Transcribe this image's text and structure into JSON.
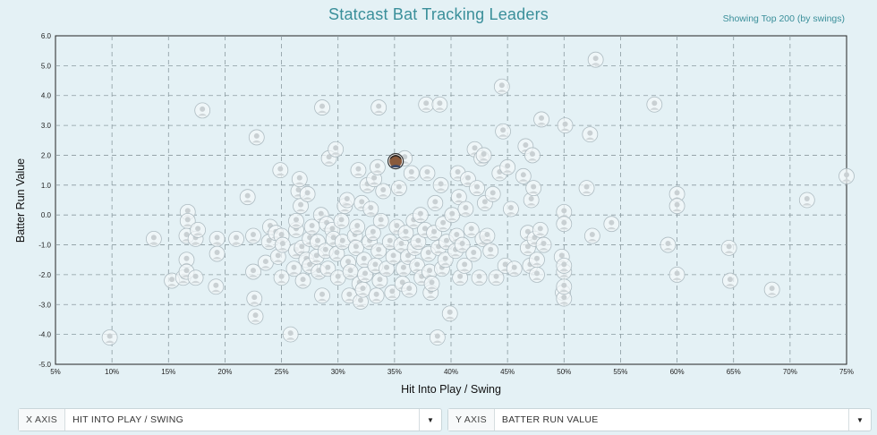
{
  "header": {
    "title": "Statcast Bat Tracking Leaders",
    "subtitle": "Showing Top 200 (by swings)"
  },
  "controls": {
    "x_axis": {
      "label": "X AXIS",
      "value": "HIT INTO PLAY / SWING"
    },
    "y_axis": {
      "label": "Y AXIS",
      "value": "BATTER RUN VALUE"
    }
  },
  "chart_data": {
    "type": "scatter",
    "xlabel": "Hit Into Play / Swing",
    "ylabel": "Batter Run Value",
    "xlim": [
      5,
      75
    ],
    "ylim": [
      -5,
      6
    ],
    "x_ticks": [
      "5%",
      "10%",
      "15%",
      "20%",
      "25%",
      "30%",
      "35%",
      "40%",
      "45%",
      "50%",
      "55%",
      "60%",
      "65%",
      "70%",
      "75%"
    ],
    "y_ticks": [
      "6.0",
      "5.0",
      "4.0",
      "3.0",
      "2.0",
      "1.0",
      "0.0",
      "-1.0",
      "-2.0",
      "-3.0",
      "-4.0",
      "-5.0"
    ],
    "grid": true,
    "highlighted": {
      "x": 35.1,
      "y": 1.8
    },
    "points": [
      [
        9.8,
        -4.1
      ],
      [
        13.7,
        -0.8
      ],
      [
        15.3,
        -2.2
      ],
      [
        16.3,
        -2.1
      ],
      [
        16.7,
        0.1
      ],
      [
        16.7,
        -0.2
      ],
      [
        16.6,
        -0.7
      ],
      [
        16.6,
        -1.5
      ],
      [
        16.6,
        -1.9
      ],
      [
        17.4,
        -2.1
      ],
      [
        17.4,
        -0.8
      ],
      [
        17.6,
        -0.5
      ],
      [
        18.0,
        3.5
      ],
      [
        19.2,
        -2.4
      ],
      [
        19.3,
        -0.8
      ],
      [
        19.3,
        -1.3
      ],
      [
        21.0,
        -0.8
      ],
      [
        22.0,
        0.6
      ],
      [
        22.5,
        -0.7
      ],
      [
        22.5,
        -1.9
      ],
      [
        22.6,
        -2.8
      ],
      [
        22.7,
        -3.4
      ],
      [
        22.8,
        2.6
      ],
      [
        23.6,
        -1.6
      ],
      [
        23.9,
        -0.9
      ],
      [
        24.0,
        -0.4
      ],
      [
        24.5,
        -0.6
      ],
      [
        24.7,
        -1.4
      ],
      [
        24.9,
        1.5
      ],
      [
        25.0,
        -0.7
      ],
      [
        25.0,
        -2.1
      ],
      [
        25.1,
        -1.0
      ],
      [
        25.8,
        -4.0
      ],
      [
        26.1,
        -1.8
      ],
      [
        26.3,
        -1.2
      ],
      [
        26.3,
        -0.5
      ],
      [
        26.3,
        -0.2
      ],
      [
        26.5,
        0.8
      ],
      [
        26.6,
        1.2
      ],
      [
        26.7,
        0.3
      ],
      [
        26.8,
        -1.1
      ],
      [
        26.9,
        -2.2
      ],
      [
        27.2,
        -1.5
      ],
      [
        27.3,
        0.7
      ],
      [
        27.5,
        -0.8
      ],
      [
        27.5,
        -1.7
      ],
      [
        27.7,
        -0.4
      ],
      [
        28.1,
        -1.4
      ],
      [
        28.2,
        -0.9
      ],
      [
        28.3,
        -1.9
      ],
      [
        28.5,
        0.0
      ],
      [
        28.6,
        -2.7
      ],
      [
        28.6,
        3.6
      ],
      [
        28.9,
        -1.2
      ],
      [
        29.0,
        -0.3
      ],
      [
        29.1,
        -1.8
      ],
      [
        29.2,
        1.9
      ],
      [
        29.5,
        -0.5
      ],
      [
        29.6,
        -0.8
      ],
      [
        29.8,
        2.2
      ],
      [
        29.9,
        -1.3
      ],
      [
        30.0,
        -2.1
      ],
      [
        30.3,
        -0.2
      ],
      [
        30.4,
        -0.9
      ],
      [
        30.6,
        0.3
      ],
      [
        30.8,
        0.5
      ],
      [
        30.9,
        -1.6
      ],
      [
        31.0,
        -2.7
      ],
      [
        31.1,
        -1.9
      ],
      [
        31.5,
        -0.7
      ],
      [
        31.6,
        -1.1
      ],
      [
        31.7,
        -0.4
      ],
      [
        31.8,
        1.5
      ],
      [
        31.9,
        -2.3
      ],
      [
        32.0,
        -2.9
      ],
      [
        32.1,
        0.4
      ],
      [
        32.2,
        -2.5
      ],
      [
        32.3,
        -1.5
      ],
      [
        32.4,
        -2.0
      ],
      [
        32.6,
        1.0
      ],
      [
        32.8,
        -0.9
      ],
      [
        32.9,
        0.2
      ],
      [
        33.1,
        -0.6
      ],
      [
        33.2,
        1.2
      ],
      [
        33.3,
        -1.7
      ],
      [
        33.4,
        -2.7
      ],
      [
        33.5,
        1.6
      ],
      [
        33.6,
        3.6
      ],
      [
        33.6,
        -1.2
      ],
      [
        33.7,
        -2.2
      ],
      [
        33.8,
        -0.2
      ],
      [
        34.0,
        0.8
      ],
      [
        34.3,
        -1.8
      ],
      [
        34.6,
        -0.9
      ],
      [
        34.8,
        -2.6
      ],
      [
        34.9,
        -1.4
      ],
      [
        35.1,
        1.8
      ],
      [
        35.2,
        -0.4
      ],
      [
        35.4,
        0.9
      ],
      [
        35.6,
        -1.0
      ],
      [
        35.7,
        -2.3
      ],
      [
        35.8,
        -1.8
      ],
      [
        35.9,
        1.9
      ],
      [
        36.0,
        -0.6
      ],
      [
        36.2,
        -1.4
      ],
      [
        36.3,
        -2.5
      ],
      [
        36.5,
        1.4
      ],
      [
        36.7,
        -0.2
      ],
      [
        36.8,
        -1.1
      ],
      [
        37.0,
        -1.7
      ],
      [
        37.1,
        -0.9
      ],
      [
        37.3,
        0.0
      ],
      [
        37.4,
        -2.1
      ],
      [
        37.7,
        -0.5
      ],
      [
        37.8,
        3.7
      ],
      [
        37.9,
        1.4
      ],
      [
        38.0,
        -1.3
      ],
      [
        38.1,
        -1.9
      ],
      [
        38.2,
        -2.6
      ],
      [
        38.3,
        -2.3
      ],
      [
        38.5,
        -0.6
      ],
      [
        38.6,
        0.4
      ],
      [
        38.8,
        -4.1
      ],
      [
        38.9,
        -1.1
      ],
      [
        39.0,
        3.7
      ],
      [
        39.1,
        1.0
      ],
      [
        39.2,
        -1.8
      ],
      [
        39.3,
        -0.3
      ],
      [
        39.5,
        -1.5
      ],
      [
        39.6,
        -0.9
      ],
      [
        39.9,
        -3.3
      ],
      [
        40.1,
        0.0
      ],
      [
        40.4,
        -1.2
      ],
      [
        40.5,
        -0.7
      ],
      [
        40.6,
        1.4
      ],
      [
        40.7,
        0.6
      ],
      [
        40.8,
        -2.1
      ],
      [
        41.0,
        -1.0
      ],
      [
        41.2,
        -1.7
      ],
      [
        41.3,
        0.2
      ],
      [
        41.5,
        1.2
      ],
      [
        41.8,
        -0.5
      ],
      [
        42.0,
        -1.3
      ],
      [
        42.1,
        2.2
      ],
      [
        42.3,
        0.9
      ],
      [
        42.5,
        -2.1
      ],
      [
        42.7,
        1.9
      ],
      [
        42.8,
        -0.8
      ],
      [
        42.9,
        2.0
      ],
      [
        43.0,
        0.4
      ],
      [
        43.2,
        -0.7
      ],
      [
        43.5,
        -1.2
      ],
      [
        43.7,
        0.7
      ],
      [
        44.0,
        -2.1
      ],
      [
        44.3,
        1.4
      ],
      [
        44.5,
        4.3
      ],
      [
        44.6,
        2.8
      ],
      [
        44.8,
        -1.7
      ],
      [
        45.0,
        1.6
      ],
      [
        45.3,
        0.2
      ],
      [
        45.6,
        -1.8
      ],
      [
        46.4,
        1.3
      ],
      [
        46.6,
        2.3
      ],
      [
        46.8,
        -0.6
      ],
      [
        46.8,
        -1.1
      ],
      [
        47.0,
        -1.7
      ],
      [
        47.1,
        0.5
      ],
      [
        47.2,
        2.0
      ],
      [
        47.3,
        0.9
      ],
      [
        47.4,
        -0.8
      ],
      [
        47.6,
        -2.0
      ],
      [
        47.6,
        -1.5
      ],
      [
        47.9,
        -0.5
      ],
      [
        48.0,
        3.2
      ],
      [
        48.2,
        -1.0
      ],
      [
        49.8,
        -1.4
      ],
      [
        49.9,
        -2.6
      ],
      [
        50.0,
        0.1
      ],
      [
        50.0,
        -0.3
      ],
      [
        50.0,
        -1.9
      ],
      [
        50.0,
        -2.8
      ],
      [
        50.0,
        -2.4
      ],
      [
        50.0,
        -1.7
      ],
      [
        50.1,
        3.0
      ],
      [
        52.0,
        0.9
      ],
      [
        52.3,
        2.7
      ],
      [
        52.5,
        -0.7
      ],
      [
        52.8,
        5.2
      ],
      [
        54.2,
        -0.3
      ],
      [
        58.0,
        3.7
      ],
      [
        59.2,
        -1.0
      ],
      [
        60.0,
        0.7
      ],
      [
        60.0,
        0.3
      ],
      [
        60.0,
        -2.0
      ],
      [
        64.6,
        -1.1
      ],
      [
        64.7,
        -2.2
      ],
      [
        68.4,
        -2.5
      ],
      [
        71.5,
        0.5
      ],
      [
        75.0,
        1.3
      ]
    ]
  }
}
